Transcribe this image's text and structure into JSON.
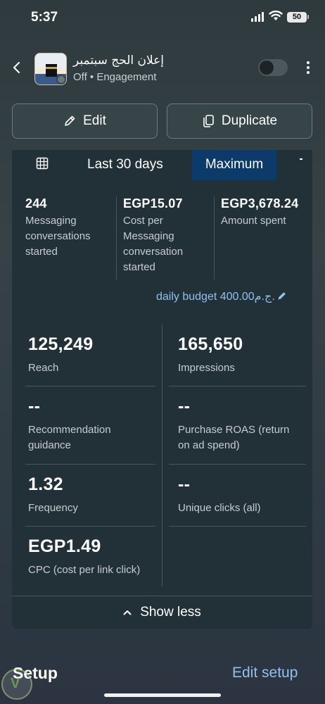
{
  "status_bar": {
    "time": "5:37",
    "battery": "50"
  },
  "header": {
    "ad_title": "إعلان الحج سبتمبر",
    "subtitle": "Off • Engagement"
  },
  "actions": {
    "edit_label": "Edit",
    "duplicate_label": "Duplicate"
  },
  "date_filter": {
    "range": "Last 30 days",
    "selected": "Maximum"
  },
  "summary_stats": [
    {
      "value": "244",
      "label": "Messaging conversations started"
    },
    {
      "value": "EGP15.07",
      "label": "Cost per Messaging conversation started"
    },
    {
      "value": "EGP3,678.24",
      "label": "Amount spent"
    }
  ],
  "budget": {
    "text": "daily budget 400.00ج.م."
  },
  "metrics": [
    {
      "value": "125,249",
      "label": "Reach"
    },
    {
      "value": "165,650",
      "label": "Impressions"
    },
    {
      "value": "--",
      "label": "Recommendation guidance"
    },
    {
      "value": "--",
      "label": "Purchase ROAS (return on ad spend)"
    },
    {
      "value": "1.32",
      "label": "Frequency"
    },
    {
      "value": "--",
      "label": "Unique clicks (all)"
    },
    {
      "value": "EGP1.49",
      "label": "CPC (cost per link click)"
    }
  ],
  "show_less_label": "Show less",
  "footer": {
    "setup_title": "Setup",
    "edit_setup_label": "Edit setup"
  },
  "colors": {
    "accent_blue": "#8fc1ef",
    "selected_tab": "#0b3a6b",
    "card_bg": "#223038"
  }
}
